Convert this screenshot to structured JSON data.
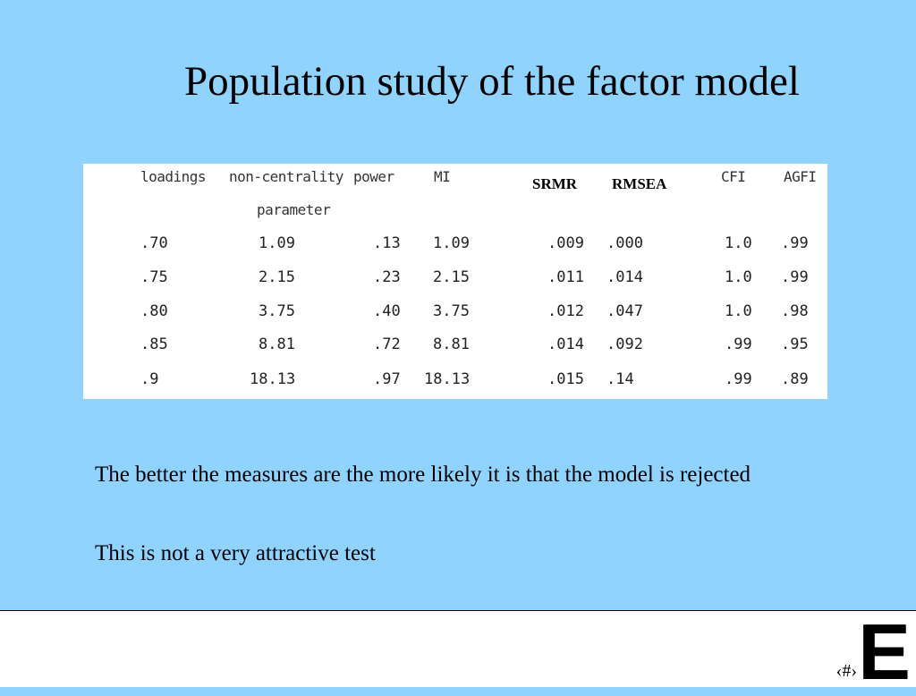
{
  "title": "Population study of the factor model",
  "table": {
    "headers": {
      "loadings": "loadings",
      "noncentrality": "non-centrality",
      "parameter": "parameter",
      "power": "power",
      "mi": "MI",
      "srmr": "SRMR",
      "rmsea": "RMSEA",
      "cfi": "CFI",
      "agfi": "AGFI"
    },
    "rows": [
      {
        "loadings": ".70",
        "ncp": "1.09",
        "power": ".13",
        "mi": "1.09",
        "srmr": ".009",
        "rmsea": ".000",
        "cfi": "1.0",
        "agfi": ".99"
      },
      {
        "loadings": ".75",
        "ncp": "2.15",
        "power": ".23",
        "mi": "2.15",
        "srmr": ".011",
        "rmsea": ".014",
        "cfi": "1.0",
        "agfi": ".99"
      },
      {
        "loadings": ".80",
        "ncp": "3.75",
        "power": ".40",
        "mi": "3.75",
        "srmr": ".012",
        "rmsea": ".047",
        "cfi": "1.0",
        "agfi": ".98"
      },
      {
        "loadings": ".85",
        "ncp": "8.81",
        "power": ".72",
        "mi": "8.81",
        "srmr": ".014",
        "rmsea": ".092",
        "cfi": ".99",
        "agfi": ".95"
      },
      {
        "loadings": ".9",
        "ncp": "18.13",
        "power": ".97",
        "mi": "18.13",
        "srmr": ".015",
        "rmsea": ".14",
        "cfi": ".99",
        "agfi": ".89"
      }
    ]
  },
  "body": {
    "paragraph1": "The better the measures are the more likely it is that the model is rejected",
    "paragraph2": "This is not a very attractive test"
  },
  "footer": {
    "slide_number": "‹#›",
    "logo_letter": "E"
  },
  "colors": {
    "background": "#8fd3fe",
    "footer": "#ffffff"
  }
}
